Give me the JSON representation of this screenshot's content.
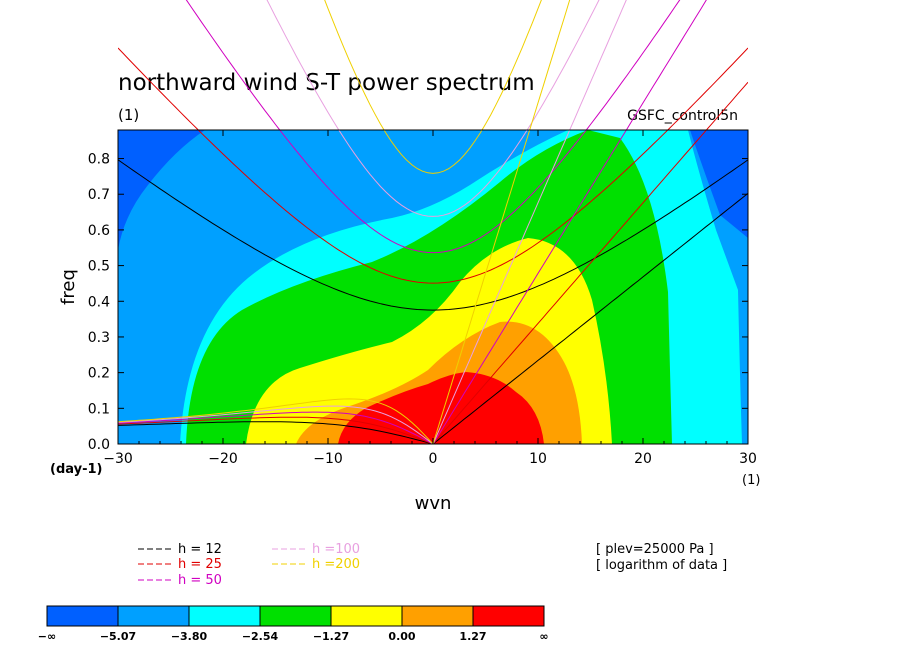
{
  "chart_data": {
    "type": "contour",
    "title": "northward wind S-T power spectrum",
    "units_label": "(1)",
    "dataset": "GSFC_control5n",
    "xlabel": "wvn",
    "ylabel": "freq",
    "x_unit_label": "(1)",
    "y_unit_label": "(day-1)",
    "xlim": [
      -30,
      30
    ],
    "ylim": [
      0,
      0.88
    ],
    "xticks": [
      -30,
      -20,
      -10,
      0,
      10,
      20,
      30
    ],
    "yticks": [
      0.0,
      0.1,
      0.2,
      0.3,
      0.4,
      0.5,
      0.6,
      0.7,
      0.8
    ],
    "xtick_labels": [
      "−30",
      "−20",
      "−10",
      "0",
      "10",
      "20",
      "30"
    ],
    "ytick_labels": [
      "0.0",
      "0.1",
      "0.2",
      "0.3",
      "0.4",
      "0.5",
      "0.6",
      "0.7",
      "0.8"
    ],
    "info_lines": [
      "[ plev=25000 Pa ]",
      "[ logarithm of data ]"
    ],
    "dispersion_curves": [
      {
        "label": "h = 12",
        "h": 12,
        "color": "#000000"
      },
      {
        "label": "h = 25",
        "h": 25,
        "color": "#e00000"
      },
      {
        "label": "h = 50",
        "h": 50,
        "color": "#d000c0"
      },
      {
        "label": "h =100",
        "h": 100,
        "color": "#e8a0e0"
      },
      {
        "label": "h =200",
        "h": 200,
        "color": "#f0d000"
      }
    ],
    "colorbar": {
      "colors": [
        "#0060ff",
        "#00a0ff",
        "#00ffff",
        "#00e000",
        "#ffff00",
        "#ffa000",
        "#ff0000"
      ],
      "boundary_labels": [
        "−∞",
        "−5.07",
        "−3.80",
        "−2.54",
        "−1.27",
        "0.00",
        "1.27",
        "∞"
      ],
      "boundary_values": [
        -5.07,
        -3.8,
        -2.54,
        -1.27,
        0.0,
        1.27
      ]
    }
  }
}
